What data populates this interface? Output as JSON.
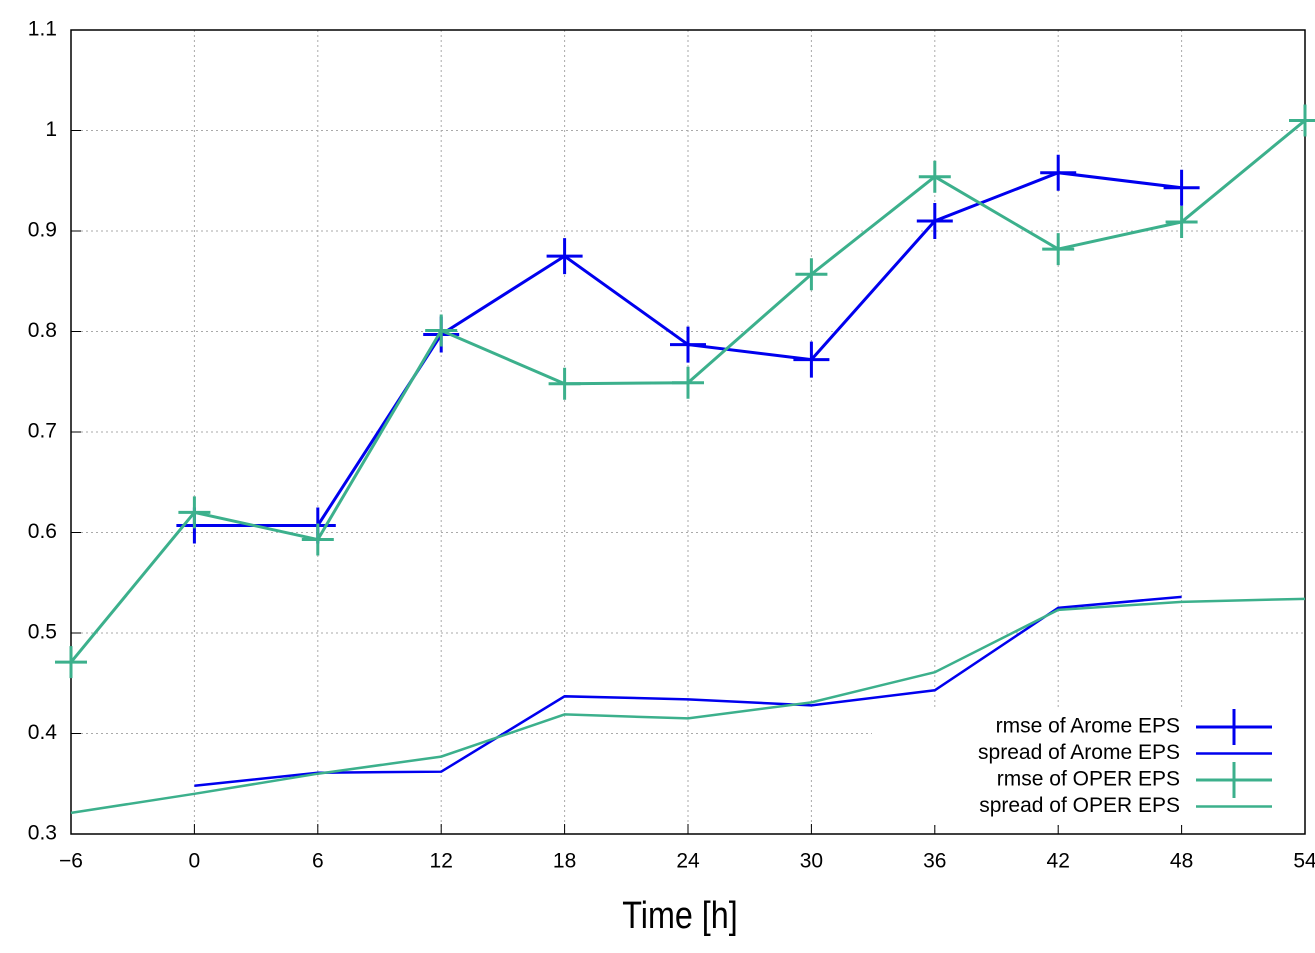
{
  "chart_data": {
    "type": "line",
    "xlabel": "Time [h]",
    "xlim": [
      -6,
      54
    ],
    "ylim": [
      0.3,
      1.1
    ],
    "xticks": [
      {
        "value": -6,
        "label": "−6"
      },
      0,
      6,
      12,
      18,
      24,
      30,
      36,
      42,
      48,
      54
    ],
    "yticks": [
      0.3,
      0.4,
      0.5,
      0.6,
      0.7,
      0.8,
      0.9,
      1,
      1.1
    ],
    "grid": true,
    "legend": "lower right",
    "series": [
      {
        "name": "rmse of Arome EPS",
        "color": "#0000ee",
        "marker": "+",
        "x": [
          0,
          6,
          12,
          18,
          24,
          30,
          36,
          42,
          48
        ],
        "values": [
          0.607,
          0.607,
          0.797,
          0.875,
          0.787,
          0.772,
          0.91,
          0.958,
          0.943
        ]
      },
      {
        "name": "spread of Arome EPS",
        "color": "#0000ee",
        "x": [
          0,
          6,
          12,
          18,
          24,
          30,
          36,
          42,
          48
        ],
        "values": [
          0.348,
          0.361,
          0.362,
          0.437,
          0.434,
          0.428,
          0.443,
          0.525,
          0.536
        ]
      },
      {
        "name": "rmse of OPER EPS",
        "color": "#3cb08c",
        "marker": "+",
        "x": [
          -6,
          0,
          6,
          12,
          18,
          24,
          30,
          36,
          42,
          48,
          54
        ],
        "values": [
          0.471,
          0.62,
          0.593,
          0.801,
          0.748,
          0.749,
          0.857,
          0.954,
          0.882,
          0.909,
          1.01
        ]
      },
      {
        "name": "spread of OPER EPS",
        "color": "#3cb08c",
        "x": [
          -6,
          0,
          6,
          12,
          18,
          24,
          30,
          36,
          42,
          48,
          54
        ],
        "values": [
          0.321,
          0.34,
          0.36,
          0.377,
          0.419,
          0.415,
          0.431,
          0.461,
          0.523,
          0.531,
          0.534
        ]
      }
    ]
  }
}
